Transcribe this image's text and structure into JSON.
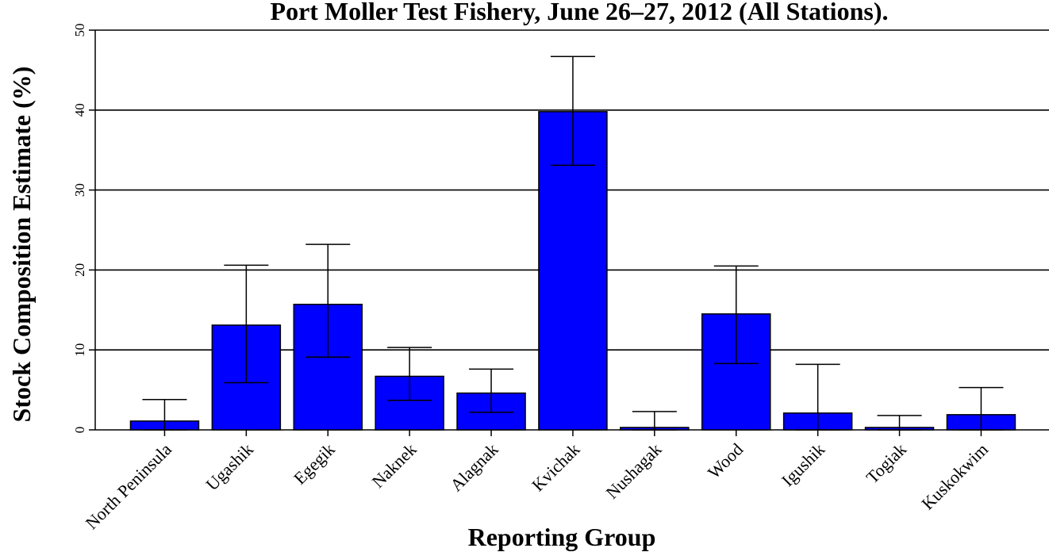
{
  "chart_data": {
    "type": "bar",
    "title": "Port Moller Test Fishery, June 26–27, 2012 (All Stations).",
    "xlabel": "Reporting Group",
    "ylabel": "Stock Composition Estimate (%)",
    "ylim": [
      0,
      50
    ],
    "yticks": [
      "0",
      "10",
      "20",
      "30",
      "40",
      "50"
    ],
    "grid": "horizontal",
    "bar_color": "#0000ff",
    "categories": [
      "North Peninsula",
      "Ugashik",
      "Egegik",
      "Naknek",
      "Alagnak",
      "Kvichak",
      "Nushagak",
      "Wood",
      "Igushik",
      "Togiak",
      "Kuskokwim"
    ],
    "values": [
      1.1,
      13.1,
      15.7,
      6.7,
      4.6,
      39.8,
      0.3,
      14.5,
      2.1,
      0.3,
      1.9
    ],
    "error_low": [
      0.0,
      5.9,
      9.1,
      3.7,
      2.2,
      33.1,
      0.0,
      8.3,
      0.0,
      0.0,
      0.0
    ],
    "error_high": [
      3.8,
      20.6,
      23.2,
      10.3,
      7.6,
      46.7,
      2.3,
      20.5,
      8.2,
      1.8,
      5.3
    ]
  }
}
